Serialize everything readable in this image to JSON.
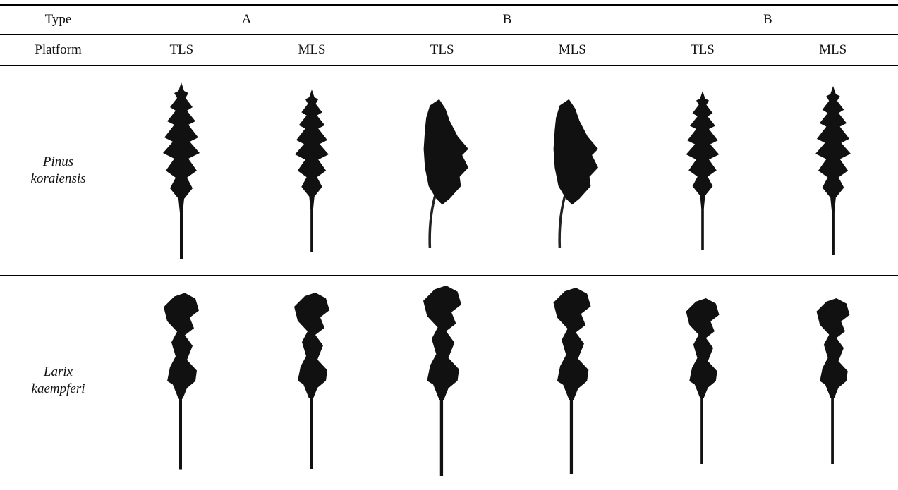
{
  "table": {
    "header": {
      "type_label": "Type",
      "groups": [
        "A",
        "B",
        "B"
      ],
      "platform_label": "Platform",
      "platforms": [
        "TLS",
        "MLS",
        "TLS",
        "MLS",
        "TLS",
        "MLS"
      ]
    },
    "rows": [
      {
        "species": "Pinus koraiensis"
      },
      {
        "species": "Larix kaempferi"
      }
    ]
  }
}
